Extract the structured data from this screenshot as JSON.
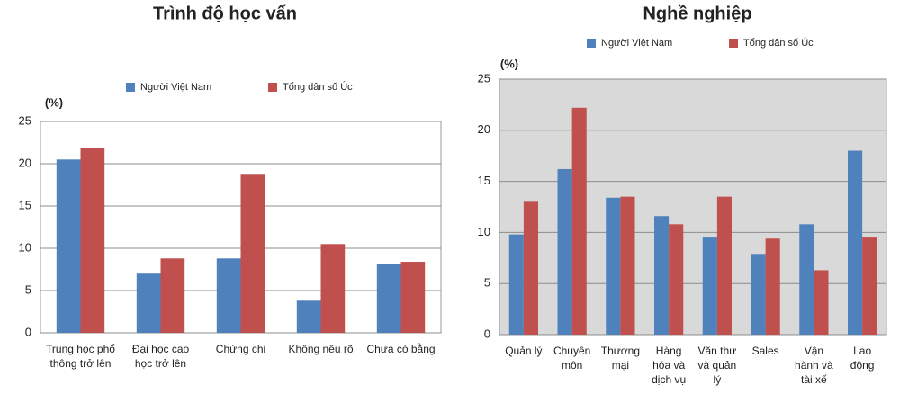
{
  "chart_data": [
    {
      "type": "bar",
      "title": "Trình độ học vấn",
      "y_label": "(%)",
      "categories": [
        "Trung học phổ thông trở lên",
        "Đại học cao học trở lên",
        "Chứng chỉ",
        "Không nêu rõ",
        "Chưa có bằng"
      ],
      "series": [
        {
          "name": "Người Việt Nam",
          "color": "#4f81bd",
          "values": [
            20.5,
            7,
            8.8,
            3.8,
            8.1
          ]
        },
        {
          "name": "Tổng dân số Úc",
          "color": "#c0504d",
          "values": [
            21.9,
            8.8,
            18.8,
            10.5,
            8.4
          ]
        }
      ],
      "ylim": [
        0,
        25
      ],
      "yticks": [
        0,
        5,
        10,
        15,
        20,
        25
      ],
      "grid": true
    },
    {
      "type": "bar",
      "title": "Nghề nghiệp",
      "y_label": "(%)",
      "categories": [
        "Quản lý",
        "Chuyên môn",
        "Thương mại",
        "Hàng hóa và dịch vụ",
        "Văn thư và quản lý",
        "Sales",
        "Vận hành và tài xế",
        "Lao động"
      ],
      "series": [
        {
          "name": "Người Việt Nam",
          "color": "#4f81bd",
          "values": [
            9.8,
            16.2,
            13.4,
            11.6,
            9.5,
            7.9,
            10.8,
            18.0
          ]
        },
        {
          "name": "Tổng dân số Úc",
          "color": "#c0504d",
          "values": [
            13.0,
            22.2,
            13.5,
            10.8,
            13.5,
            9.4,
            6.3,
            9.5
          ]
        }
      ],
      "ylim": [
        0,
        25
      ],
      "yticks": [
        0,
        5,
        10,
        15,
        20,
        25
      ],
      "grid": true
    }
  ]
}
